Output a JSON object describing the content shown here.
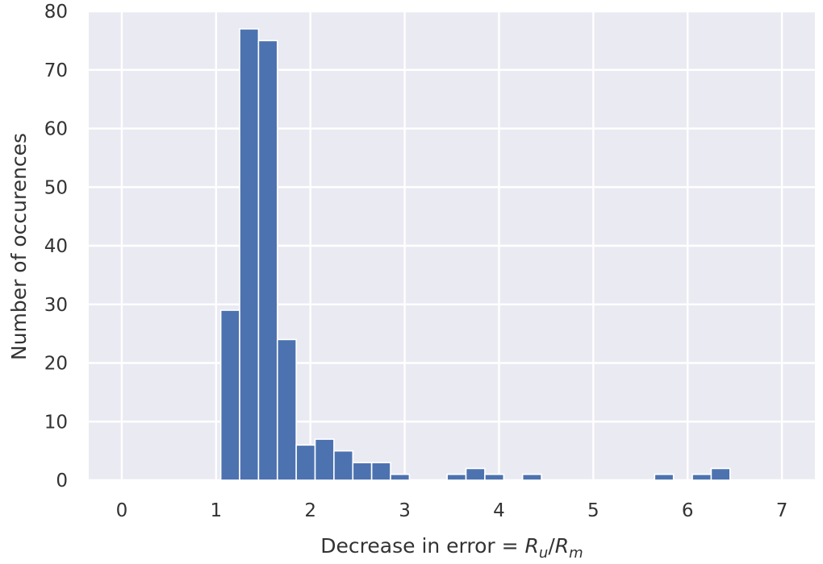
{
  "chart_data": {
    "type": "bar",
    "title": "",
    "xlabel_prefix": "Decrease in error = ",
    "xlabel_r1": "R",
    "xlabel_sub1": "u",
    "xlabel_slash": "/",
    "xlabel_r2": "R",
    "xlabel_sub2": "m",
    "ylabel": "Number of occurences",
    "xlim": [
      -0.35,
      7.35
    ],
    "ylim": [
      0,
      80
    ],
    "xticks": [
      0,
      1,
      2,
      3,
      4,
      5,
      6,
      7
    ],
    "yticks": [
      0,
      10,
      20,
      30,
      40,
      50,
      60,
      70,
      80
    ],
    "grid": true,
    "bar_color": "#4c72b0",
    "background_color": "#eaeaf2",
    "bin_start": 1.05,
    "bin_width": 0.2,
    "values": [
      29,
      77,
      75,
      24,
      6,
      7,
      5,
      3,
      3,
      1,
      0,
      0,
      1,
      2,
      1,
      0,
      1,
      0,
      0,
      0,
      0,
      0,
      0,
      1,
      0,
      1,
      2
    ]
  }
}
